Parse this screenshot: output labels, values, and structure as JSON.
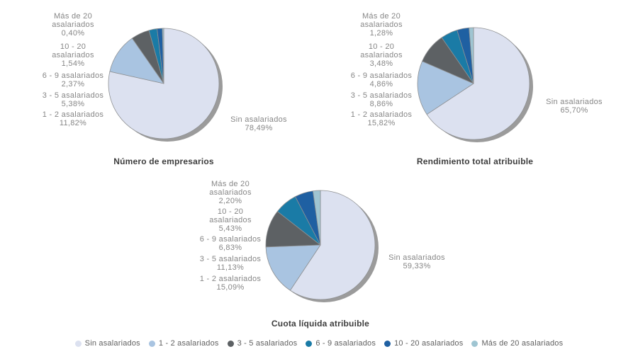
{
  "chart_data": [
    {
      "type": "pie",
      "title": "Número de empresarios",
      "labels": [
        "Sin asalariados",
        "1 - 2 asalariados",
        "3 - 5 asalariados",
        "6 - 9 asalariados",
        "10 - 20 asalariados",
        "Más de 20 asalariados"
      ],
      "values": [
        78.49,
        11.82,
        5.38,
        2.37,
        1.54,
        0.4
      ],
      "value_displays": [
        "78,49%",
        "11,82%",
        "5,38%",
        "2,37%",
        "1,54%",
        "0,40%"
      ],
      "legend_position": "bottom"
    },
    {
      "type": "pie",
      "title": "Rendimiento total atribuible",
      "labels": [
        "Sin asalariados",
        "1 - 2 asalariados",
        "3 - 5 asalariados",
        "6 - 9 asalariados",
        "10 - 20 asalariados",
        "Más de 20 asalariados"
      ],
      "values": [
        65.7,
        15.82,
        8.86,
        4.86,
        3.48,
        1.28
      ],
      "value_displays": [
        "65,70%",
        "15,82%",
        "8,86%",
        "4,86%",
        "3,48%",
        "1,28%"
      ],
      "legend_position": "bottom"
    },
    {
      "type": "pie",
      "title": "Cuota líquida atribuible",
      "labels": [
        "Sin asalariados",
        "1 - 2 asalariados",
        "3 - 5 asalariados",
        "6 - 9 asalariados",
        "10 - 20 asalariados",
        "Más de 20 asalariados"
      ],
      "values": [
        59.33,
        15.09,
        11.13,
        6.83,
        5.43,
        2.2
      ],
      "value_displays": [
        "59,33%",
        "15,09%",
        "11,13%",
        "6,83%",
        "5,43%",
        "2,20%"
      ],
      "legend_position": "bottom"
    }
  ],
  "palette": [
    "#dce1f0",
    "#a9c4e1",
    "#5d6164",
    "#1a7ba6",
    "#1f60a2",
    "#9fc5d2"
  ],
  "legend": {
    "items": [
      {
        "label": "Sin asalariados",
        "color": "#dce1f0"
      },
      {
        "label": "1 - 2 asalariados",
        "color": "#a9c4e1"
      },
      {
        "label": "3 - 5 asalariados",
        "color": "#5d6164"
      },
      {
        "label": "6 - 9 asalariados",
        "color": "#1a7ba6"
      },
      {
        "label": "10 - 20 asalariados",
        "color": "#1f60a2"
      },
      {
        "label": "Más de 20 asalariados",
        "color": "#9fc5d2"
      }
    ]
  },
  "label_line_wraps": {
    "Sin asalariados": [
      "Sin asalariados"
    ],
    "1 - 2 asalariados": [
      "1 - 2 asalariados"
    ],
    "3 - 5 asalariados": [
      "3 - 5 asalariados"
    ],
    "6 - 9 asalariados": [
      "6 - 9 asalariados"
    ],
    "10 - 20 asalariados": [
      "10 - 20",
      "asalariados"
    ],
    "Más de 20 asalariados": [
      "Más de 20",
      "asalariados"
    ]
  },
  "shadow_color": "#9b9b9b",
  "slice_stroke": "#8f9193",
  "background_color": "#ffffff"
}
